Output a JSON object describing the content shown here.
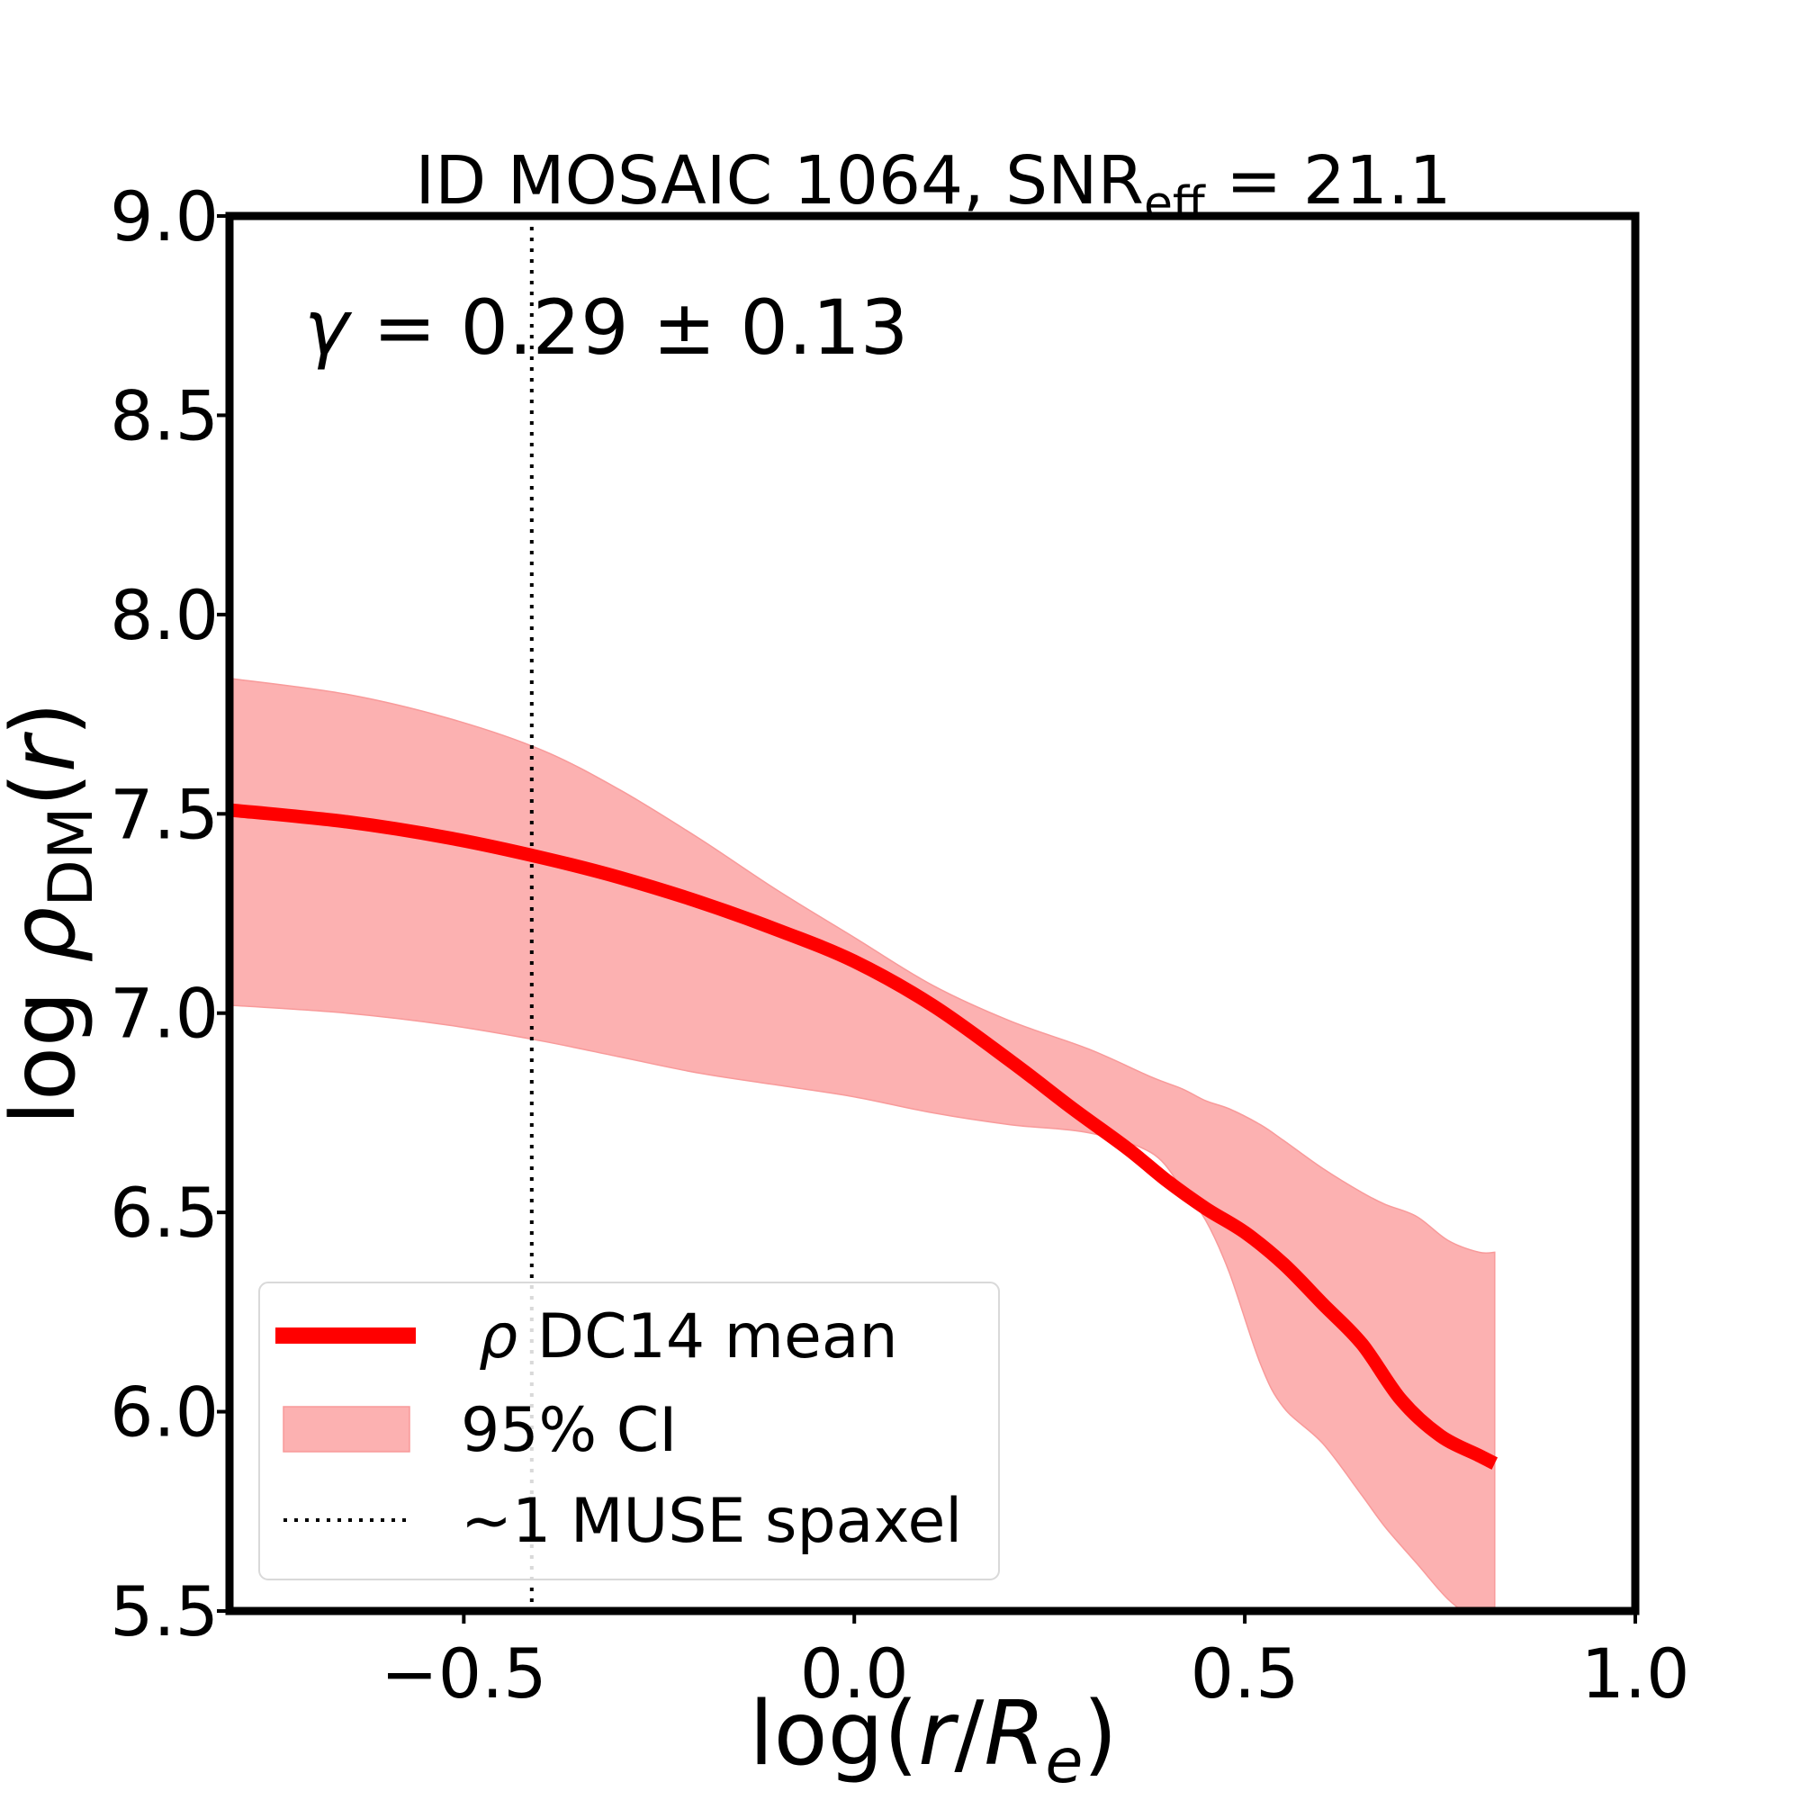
{
  "chart_data": {
    "type": "line",
    "title": {
      "prefix": "ID MOSAIC 1064, SNR",
      "subscript": "eff",
      "suffix": " = 21.1"
    },
    "xlabel": {
      "pre": "log(",
      "r": "r",
      "slash": "/",
      "R": "R",
      "sub": "e",
      "post": ")"
    },
    "ylabel": {
      "pre": "log",
      "rho": "ρ",
      "sub": "DM",
      "open": "(",
      "r": "r",
      "close": ")"
    },
    "xlim": [
      -0.8,
      1.0
    ],
    "ylim": [
      5.5,
      9.0
    ],
    "xticks": [
      -0.5,
      0.0,
      0.5,
      1.0
    ],
    "xtick_labels": [
      "−0.5",
      "0.0",
      "0.5",
      "1.0"
    ],
    "yticks": [
      5.5,
      6.0,
      6.5,
      7.0,
      7.5,
      8.0,
      8.5,
      9.0
    ],
    "ytick_labels": [
      "5.5",
      "6.0",
      "6.5",
      "7.0",
      "7.5",
      "8.0",
      "8.5",
      "9.0"
    ],
    "grid": false,
    "annotation": {
      "gamma": "γ",
      "text": " = 0.29 ± 0.13"
    },
    "muse_spaxel_x": -0.413,
    "series": [
      {
        "name": "DC14 mean",
        "symbol": "ρ",
        "kind": "line",
        "color": "#ff0000",
        "x": [
          -0.8,
          -0.65,
          -0.52,
          -0.4,
          -0.3,
          -0.2,
          -0.1,
          0.0,
          0.1,
          0.2,
          0.28,
          0.35,
          0.4,
          0.45,
          0.5,
          0.55,
          0.6,
          0.65,
          0.7,
          0.75,
          0.8,
          0.82
        ],
        "y": [
          7.51,
          7.48,
          7.44,
          7.39,
          7.34,
          7.28,
          7.21,
          7.13,
          7.02,
          6.88,
          6.76,
          6.66,
          6.58,
          6.51,
          6.45,
          6.37,
          6.27,
          6.17,
          6.03,
          5.94,
          5.89,
          5.87
        ]
      },
      {
        "name": "95% CI",
        "kind": "band",
        "color": "#fcb1b1",
        "x": [
          -0.8,
          -0.65,
          -0.52,
          -0.4,
          -0.3,
          -0.2,
          -0.1,
          0.0,
          0.1,
          0.2,
          0.3,
          0.38,
          0.42,
          0.45,
          0.48,
          0.52,
          0.55,
          0.6,
          0.65,
          0.68,
          0.72,
          0.76,
          0.8,
          0.82
        ],
        "upper": [
          7.84,
          7.8,
          7.74,
          7.66,
          7.56,
          7.44,
          7.31,
          7.19,
          7.07,
          6.98,
          6.91,
          6.84,
          6.81,
          6.78,
          6.76,
          6.72,
          6.68,
          6.61,
          6.55,
          6.52,
          6.49,
          6.43,
          6.4,
          6.4
        ],
        "lower": [
          7.02,
          7.0,
          6.97,
          6.93,
          6.89,
          6.85,
          6.82,
          6.79,
          6.75,
          6.72,
          6.7,
          6.65,
          6.56,
          6.48,
          6.35,
          6.12,
          6.01,
          5.92,
          5.79,
          5.71,
          5.62,
          5.53,
          5.47,
          5.45
        ]
      },
      {
        "name": "~1 MUSE spaxel",
        "kind": "vline",
        "color": "#000000"
      }
    ]
  }
}
